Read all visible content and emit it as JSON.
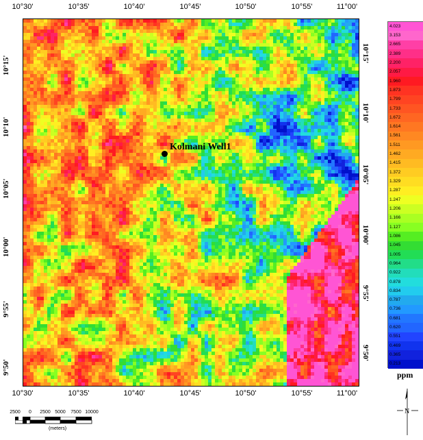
{
  "map": {
    "longitude_ticks": [
      "10°30'",
      "10°35'",
      "10°40'",
      "10°45'",
      "10°50'",
      "10°55'",
      "11°00'"
    ],
    "latitude_ticks": [
      "10°15'",
      "10°10'",
      "10°05'",
      "10°00'",
      "9°55'",
      "9°50'"
    ],
    "well_label": "Kolmani Well1",
    "color_scale": [
      {
        "value": "4.023",
        "color": "#ff55d4"
      },
      {
        "value": "3.153",
        "color": "#ff66cc"
      },
      {
        "value": "2.665",
        "color": "#ff3fa6"
      },
      {
        "value": "2.389",
        "color": "#ff2f88"
      },
      {
        "value": "2.200",
        "color": "#ff2266"
      },
      {
        "value": "2.057",
        "color": "#ff1a44"
      },
      {
        "value": "1.960",
        "color": "#ff1a22"
      },
      {
        "value": "1.873",
        "color": "#ff3322"
      },
      {
        "value": "1.799",
        "color": "#ff4422"
      },
      {
        "value": "1.733",
        "color": "#ff5522"
      },
      {
        "value": "1.672",
        "color": "#ff6622"
      },
      {
        "value": "1.614",
        "color": "#ff7722"
      },
      {
        "value": "1.561",
        "color": "#ff8822"
      },
      {
        "value": "1.511",
        "color": "#ff9922"
      },
      {
        "value": "1.462",
        "color": "#ffaa22"
      },
      {
        "value": "1.415",
        "color": "#ffbb22"
      },
      {
        "value": "1.372",
        "color": "#ffcc22"
      },
      {
        "value": "1.329",
        "color": "#ffdd22"
      },
      {
        "value": "1.287",
        "color": "#ffee22"
      },
      {
        "value": "1.247",
        "color": "#eeff22"
      },
      {
        "value": "1.206",
        "color": "#ccff22"
      },
      {
        "value": "1.166",
        "color": "#aaff22"
      },
      {
        "value": "1.127",
        "color": "#88ff22"
      },
      {
        "value": "1.086",
        "color": "#55ee22"
      },
      {
        "value": "1.045",
        "color": "#33dd33"
      },
      {
        "value": "1.005",
        "color": "#22dd55"
      },
      {
        "value": "0.964",
        "color": "#22dd88"
      },
      {
        "value": "0.922",
        "color": "#22ddbb"
      },
      {
        "value": "0.878",
        "color": "#22dddd"
      },
      {
        "value": "0.834",
        "color": "#22ccee"
      },
      {
        "value": "0.787",
        "color": "#22aaee"
      },
      {
        "value": "0.736",
        "color": "#2299ff"
      },
      {
        "value": "0.681",
        "color": "#2277ff"
      },
      {
        "value": "0.620",
        "color": "#2266ff"
      },
      {
        "value": "0.551",
        "color": "#2244ff"
      },
      {
        "value": "0.469",
        "color": "#1133ee"
      },
      {
        "value": "0.365",
        "color": "#1122dd"
      },
      {
        "value": "0.213",
        "color": "#0011cc"
      }
    ],
    "unit_label": "ppm",
    "scale_bar": {
      "labels": [
        "2500",
        "0",
        "2500",
        "5000",
        "7500",
        "10000"
      ],
      "unit": "(meters)"
    },
    "north_label": "N"
  }
}
